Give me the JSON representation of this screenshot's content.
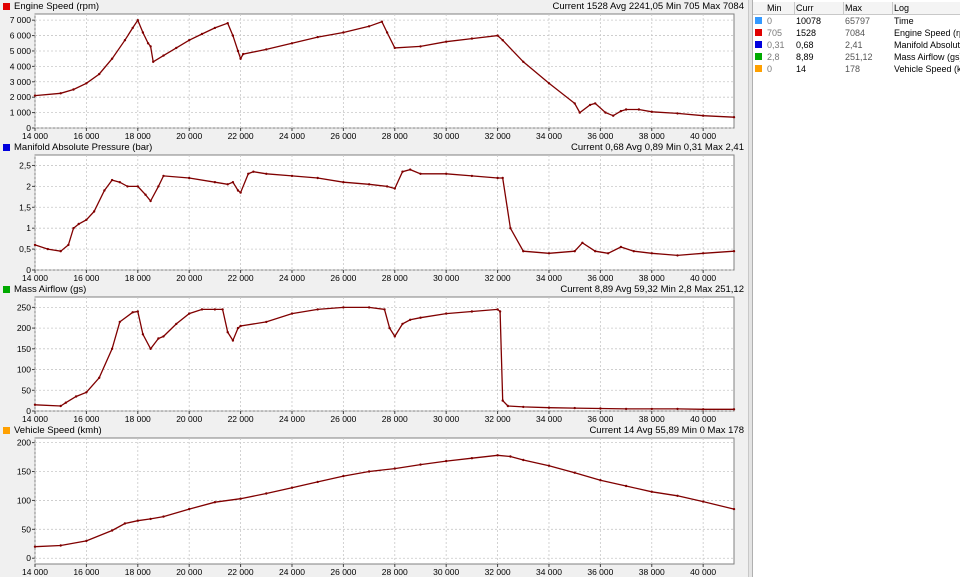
{
  "panels": [
    {
      "title": "Engine Speed (rpm)",
      "stats": "Current 1528 Avg 2241,05 Min 705 Max 7084",
      "color": "#e00000"
    },
    {
      "title": "Manifold Absolute Pressure (bar)",
      "stats": "Current 0,68 Avg 0,89 Min 0,31 Max 2,41",
      "color": "#0000dd"
    },
    {
      "title": "Mass Airflow (gs)",
      "stats": "Current 8,89 Avg 59,32 Min 2,8 Max 251,12",
      "color": "#00aa00"
    },
    {
      "title": "Vehicle Speed (kmh)",
      "stats": "Current 14 Avg 55,89 Min 0 Max 178",
      "color": "#ffa000"
    }
  ],
  "side_table": {
    "headers": {
      "min": "Min",
      "curr": "Curr",
      "max": "Max",
      "log": "Log"
    },
    "rows": [
      {
        "min": "0",
        "curr": "10078",
        "max": "65797",
        "log": "Time",
        "color": "#3399ff"
      },
      {
        "min": "705",
        "curr": "1528",
        "max": "7084",
        "log": "Engine Speed (rpm)",
        "color": "#e00000"
      },
      {
        "min": "0,31",
        "curr": "0,68",
        "max": "2,41",
        "log": "Manifold Absolute Pressure (bar)",
        "color": "#0000dd"
      },
      {
        "min": "2,8",
        "curr": "8,89",
        "max": "251,12",
        "log": "Mass Airflow (gs)",
        "color": "#00aa00"
      },
      {
        "min": "0",
        "curr": "14",
        "max": "178",
        "log": "Vehicle Speed (kmh)",
        "color": "#ffa000"
      }
    ]
  },
  "chart_data": [
    {
      "type": "line",
      "title": "Engine Speed (rpm)",
      "line_color": "#800000",
      "xlim": [
        14000,
        41200
      ],
      "ylim": [
        0,
        7400
      ],
      "x_ticks": [
        14000,
        16000,
        18000,
        20000,
        22000,
        24000,
        26000,
        28000,
        30000,
        32000,
        34000,
        36000,
        38000,
        40000
      ],
      "x_tick_labels": [
        "14 000",
        "16 000",
        "18 000",
        "20 000",
        "22 000",
        "24 000",
        "26 000",
        "28 000",
        "30 000",
        "32 000",
        "34 000",
        "36 000",
        "38 000",
        "40 000"
      ],
      "y_ticks": [
        0,
        1000,
        2000,
        3000,
        4000,
        5000,
        6000,
        7000
      ],
      "y_tick_labels": [
        "0",
        "1 000",
        "2 000",
        "3 000",
        "4 000",
        "5 000",
        "6 000",
        "7 000"
      ],
      "grid": true,
      "x": [
        14000,
        15000,
        15500,
        16000,
        16500,
        17000,
        17500,
        17800,
        18000,
        18200,
        18400,
        18500,
        18600,
        19000,
        19500,
        20000,
        20500,
        21000,
        21500,
        21700,
        21900,
        22000,
        22100,
        23000,
        24000,
        25000,
        26000,
        27000,
        27500,
        27700,
        28000,
        29000,
        30000,
        31000,
        32000,
        32200,
        33000,
        34000,
        35000,
        35200,
        35600,
        35800,
        36200,
        36500,
        36800,
        37000,
        37500,
        38000,
        39000,
        40000,
        41200
      ],
      "y": [
        2100,
        2250,
        2500,
        2900,
        3500,
        4500,
        5700,
        6500,
        7000,
        6200,
        5500,
        5300,
        4300,
        4700,
        5200,
        5700,
        6100,
        6500,
        6800,
        6000,
        5000,
        4500,
        4800,
        5100,
        5500,
        5900,
        6200,
        6600,
        6900,
        6200,
        5200,
        5300,
        5600,
        5800,
        6000,
        5700,
        4300,
        2900,
        1600,
        1000,
        1500,
        1600,
        1000,
        800,
        1100,
        1200,
        1200,
        1050,
        950,
        800,
        700
      ]
    },
    {
      "type": "line",
      "title": "Manifold Absolute Pressure (bar)",
      "line_color": "#800000",
      "xlim": [
        14000,
        41200
      ],
      "ylim": [
        0,
        2.75
      ],
      "x_ticks": [
        14000,
        16000,
        18000,
        20000,
        22000,
        24000,
        26000,
        28000,
        30000,
        32000,
        34000,
        36000,
        38000,
        40000
      ],
      "x_tick_labels": [
        "14 000",
        "16 000",
        "18 000",
        "20 000",
        "22 000",
        "24 000",
        "26 000",
        "28 000",
        "30 000",
        "32 000",
        "34 000",
        "36 000",
        "38 000",
        "40 000"
      ],
      "y_ticks": [
        0,
        0.5,
        1,
        1.5,
        2,
        2.5
      ],
      "y_tick_labels": [
        "0",
        "0,5",
        "1",
        "1,5",
        "2",
        "2,5"
      ],
      "grid": true,
      "x": [
        14000,
        14500,
        15000,
        15300,
        15500,
        15700,
        16000,
        16300,
        16700,
        17000,
        17300,
        17600,
        18000,
        18300,
        18500,
        18800,
        19000,
        20000,
        21000,
        21500,
        21700,
        21900,
        22000,
        22300,
        22500,
        23000,
        24000,
        25000,
        26000,
        27000,
        27700,
        28000,
        28300,
        28600,
        29000,
        30000,
        31000,
        32000,
        32200,
        32500,
        33000,
        34000,
        35000,
        35300,
        35800,
        36300,
        36800,
        37300,
        38000,
        39000,
        40000,
        41200
      ],
      "y": [
        0.6,
        0.5,
        0.45,
        0.6,
        1.0,
        1.1,
        1.2,
        1.4,
        1.9,
        2.15,
        2.1,
        2.0,
        2.0,
        1.8,
        1.65,
        2.0,
        2.25,
        2.2,
        2.1,
        2.05,
        2.1,
        1.9,
        1.85,
        2.3,
        2.35,
        2.3,
        2.25,
        2.2,
        2.1,
        2.05,
        2.0,
        1.95,
        2.35,
        2.4,
        2.3,
        2.3,
        2.25,
        2.2,
        2.2,
        1.0,
        0.45,
        0.4,
        0.45,
        0.65,
        0.45,
        0.4,
        0.55,
        0.45,
        0.4,
        0.35,
        0.4,
        0.45
      ]
    },
    {
      "type": "line",
      "title": "Mass Airflow (gs)",
      "line_color": "#800000",
      "xlim": [
        14000,
        41200
      ],
      "ylim": [
        0,
        275
      ],
      "x_ticks": [
        14000,
        16000,
        18000,
        20000,
        22000,
        24000,
        26000,
        28000,
        30000,
        32000,
        34000,
        36000,
        38000,
        40000
      ],
      "x_tick_labels": [
        "14 000",
        "16 000",
        "18 000",
        "20 000",
        "22 000",
        "24 000",
        "26 000",
        "28 000",
        "30 000",
        "32 000",
        "34 000",
        "36 000",
        "38 000",
        "40 000"
      ],
      "y_ticks": [
        0,
        50,
        100,
        150,
        200,
        250
      ],
      "y_tick_labels": [
        "0",
        "50",
        "100",
        "150",
        "200",
        "250"
      ],
      "grid": true,
      "x": [
        14000,
        15000,
        15200,
        15600,
        16000,
        16500,
        17000,
        17300,
        17800,
        18000,
        18200,
        18500,
        18800,
        19000,
        19500,
        20000,
        20500,
        21000,
        21300,
        21500,
        21700,
        21900,
        22000,
        23000,
        24000,
        25000,
        26000,
        27000,
        27600,
        27800,
        28000,
        28300,
        28600,
        29000,
        30000,
        31000,
        32000,
        32100,
        32200,
        32400,
        33000,
        34000,
        35000,
        36000,
        37000,
        38000,
        39000,
        40000,
        41200
      ],
      "y": [
        15,
        12,
        20,
        35,
        45,
        80,
        150,
        215,
        238,
        240,
        185,
        150,
        175,
        180,
        210,
        235,
        245,
        245,
        245,
        190,
        170,
        200,
        205,
        215,
        235,
        245,
        250,
        250,
        245,
        200,
        180,
        210,
        220,
        225,
        235,
        240,
        245,
        240,
        25,
        12,
        10,
        8,
        7,
        6,
        5,
        5,
        5,
        4,
        4
      ]
    },
    {
      "type": "line",
      "title": "Vehicle Speed (kmh)",
      "line_color": "#800000",
      "xlim": [
        14000,
        41200
      ],
      "ylim": [
        -10,
        208
      ],
      "x_ticks": [
        14000,
        16000,
        18000,
        20000,
        22000,
        24000,
        26000,
        28000,
        30000,
        32000,
        34000,
        36000,
        38000,
        40000
      ],
      "x_tick_labels": [
        "14 000",
        "16 000",
        "18 000",
        "20 000",
        "22 000",
        "24 000",
        "26 000",
        "28 000",
        "30 000",
        "32 000",
        "34 000",
        "36 000",
        "38 000",
        "40 000"
      ],
      "y_ticks": [
        0,
        50,
        100,
        150,
        200
      ],
      "y_tick_labels": [
        "0",
        "50",
        "100",
        "150",
        "200"
      ],
      "grid": true,
      "x": [
        14000,
        15000,
        16000,
        17000,
        17500,
        18000,
        18500,
        19000,
        20000,
        21000,
        22000,
        23000,
        24000,
        25000,
        26000,
        27000,
        28000,
        29000,
        30000,
        31000,
        32000,
        32500,
        33000,
        34000,
        35000,
        36000,
        37000,
        38000,
        39000,
        40000,
        41200
      ],
      "y": [
        20,
        22,
        30,
        48,
        60,
        65,
        68,
        72,
        85,
        97,
        103,
        112,
        122,
        132,
        142,
        150,
        155,
        162,
        168,
        173,
        178,
        176,
        170,
        160,
        148,
        135,
        125,
        115,
        108,
        98,
        85
      ]
    }
  ]
}
